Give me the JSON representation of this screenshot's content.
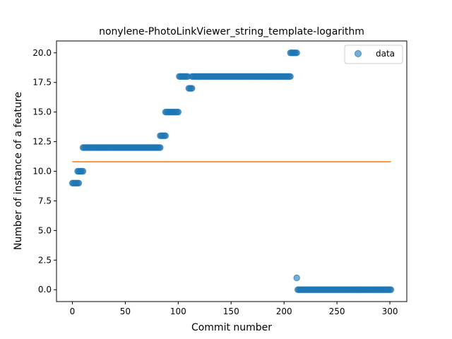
{
  "chart_data": {
    "type": "scatter",
    "title": "nonylene-PhotoLinkViewer_string_template-logarithm",
    "xlabel": "Commit number",
    "ylabel": "Number of instance of a feature",
    "xlim": [
      -15,
      316
    ],
    "ylim": [
      -1.0,
      21.0
    ],
    "xticks": [
      0,
      50,
      100,
      150,
      200,
      250,
      300
    ],
    "xtick_labels": [
      "0",
      "50",
      "100",
      "150",
      "200",
      "250",
      "300"
    ],
    "yticks": [
      0.0,
      2.5,
      5.0,
      7.5,
      10.0,
      12.5,
      15.0,
      17.5,
      20.0
    ],
    "ytick_labels": [
      "0.0",
      "2.5",
      "5.0",
      "7.5",
      "10.0",
      "12.5",
      "15.0",
      "17.5",
      "20.0"
    ],
    "grid": false,
    "legend_position": "top-right",
    "colors": {
      "data": "#1f77b4",
      "fit": "#ff7f0e"
    },
    "series": [
      {
        "name": "data",
        "kind": "scatter",
        "segments": [
          {
            "x_start": 0,
            "x_end": 6,
            "y": 9
          },
          {
            "x_start": 5,
            "x_end": 10,
            "y": 10
          },
          {
            "x_start": 10,
            "x_end": 83,
            "y": 12
          },
          {
            "x_start": 83,
            "x_end": 88,
            "y": 13
          },
          {
            "x_start": 88,
            "x_end": 100,
            "y": 15
          },
          {
            "x_start": 101,
            "x_end": 109,
            "y": 18
          },
          {
            "x_start": 110,
            "x_end": 113,
            "y": 17
          },
          {
            "x_start": 113,
            "x_end": 206,
            "y": 18
          },
          {
            "x_start": 206,
            "x_end": 212,
            "y": 20
          },
          {
            "x_start": 212,
            "x_end": 212,
            "y": 1
          },
          {
            "x_start": 213,
            "x_end": 301,
            "y": 0
          }
        ]
      },
      {
        "kind": "line",
        "x": [
          0,
          301
        ],
        "y": [
          10.8,
          10.8
        ]
      }
    ],
    "legend_entries": [
      "data"
    ]
  }
}
